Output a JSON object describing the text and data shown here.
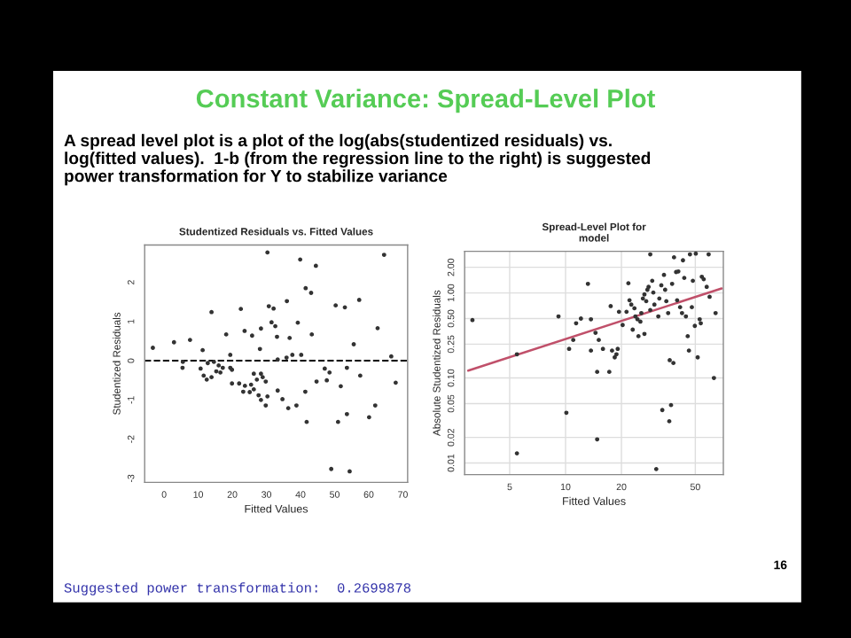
{
  "chart_data": [
    {
      "type": "other",
      "title": "Constant Variance: Spread-Level Plot",
      "subtitle": "A spread level plot is a plot of the log(abs(studentized residuals) vs.\nlog(fitted values).  1-b (from the regression line to the right) is suggested\npower transformation for Y to stabilize variance",
      "annotations": [
        "Suggested power transformation:  0.2699878",
        "16"
      ]
    },
    {
      "type": "scatter",
      "title": "Studentized Residuals vs. Fitted Values",
      "xlabel": "Fitted Values",
      "ylabel": "Studentized Residuals",
      "xlim": [
        -5.7,
        71.4
      ],
      "ylim": [
        -3.1,
        2.95
      ],
      "xticks": [
        0,
        10,
        20,
        30,
        40,
        50,
        60,
        70
      ],
      "yticks": [
        -3,
        -2,
        -1,
        0,
        1,
        2
      ],
      "marker": "circle",
      "grid": false,
      "ref_lines": [
        {
          "axis": "y",
          "value": 0,
          "color": "#000000",
          "line_style": "dashed"
        }
      ],
      "series": [
        {
          "color": "#333333",
          "x": [
            30.3,
            39.9,
            44.5,
            64.5,
            41.5,
            43.1,
            36,
            30.7,
            32.1,
            50.3,
            53,
            57.2,
            13.9,
            22.5,
            31.5,
            32.6,
            39.2,
            28.4,
            23.6,
            25.8,
            33.1,
            36.8,
            18.2,
            62.6,
            43.3,
            2.9,
            7.6,
            11.3,
            -3.3,
            55.6,
            28.1,
            19.4,
            37.6,
            40.2,
            35.9,
            33.3,
            66.6,
            5.5,
            5.4,
            10.7,
            12.8,
            14.6,
            16,
            17.2,
            11.6,
            13.9,
            15.3,
            16.5,
            19.4,
            19.9,
            12.5,
            19.9,
            22,
            23.7,
            23.2,
            25.5,
            26.3,
            27.2,
            28.4,
            28.9,
            26.3,
            25.1,
            27.7,
            28.4,
            29.8,
            30.3,
            29.8,
            33.3,
            34.7,
            36.4,
            38.8,
            41.4,
            44.7,
            47.1,
            48.5,
            47.7,
            51.8,
            53.6,
            57.5,
            67.9,
            41.8,
            51,
            53.6,
            60.1,
            61.9,
            49,
            54.4
          ],
          "values": [
            2.76,
            2.58,
            2.42,
            2.7,
            1.85,
            1.73,
            1.52,
            1.39,
            1.33,
            1.41,
            1.36,
            1.55,
            1.24,
            1.32,
            0.98,
            0.88,
            0.97,
            0.82,
            0.76,
            0.64,
            0.61,
            0.58,
            0.67,
            0.83,
            0.67,
            0.47,
            0.53,
            0.27,
            0.33,
            0.42,
            0.3,
            0.15,
            0.15,
            0.15,
            0.08,
            0.03,
            0.11,
            -0.03,
            -0.18,
            -0.2,
            -0.06,
            -0.03,
            -0.12,
            -0.18,
            -0.38,
            -0.42,
            -0.27,
            -0.3,
            -0.18,
            -0.23,
            -0.48,
            -0.58,
            -0.58,
            -0.64,
            -0.79,
            -0.61,
            -0.33,
            -0.48,
            -0.33,
            -0.42,
            -0.73,
            -0.8,
            -0.88,
            -1.0,
            -1.14,
            -0.91,
            -0.53,
            -0.76,
            -0.98,
            -1.21,
            -1.14,
            -0.79,
            -0.53,
            -0.2,
            -0.3,
            -0.5,
            -0.65,
            -0.18,
            -0.38,
            -0.56,
            -1.56,
            -1.56,
            -1.36,
            -1.44,
            -1.14,
            -2.76,
            -2.82
          ]
        }
      ]
    },
    {
      "type": "scatter",
      "title": "Spread-Level Plot for\nmodel",
      "xlabel": "Fitted Values",
      "ylabel": "Absolute Studentized Residuals",
      "log": "xy",
      "xlim": [
        2.86,
        70.8
      ],
      "ylim": [
        0.0073,
        3.08
      ],
      "xticks": [
        5,
        10,
        20,
        50
      ],
      "yticks": [
        {
          "value": 0.01,
          "label": "0.01"
        },
        {
          "value": 0.02,
          "label": "0.02"
        },
        {
          "value": 0.05,
          "label": "0.05"
        },
        {
          "value": 0.1,
          "label": "0.10"
        },
        {
          "value": 0.25,
          "label": "0.25"
        },
        {
          "value": 0.5,
          "label": "0.50"
        },
        {
          "value": 1,
          "label": "1.00"
        },
        {
          "value": 2,
          "label": "2.00"
        }
      ],
      "marker": "circle",
      "grid": true,
      "series": [
        {
          "color": "#333333",
          "x": [
            3.15,
            5.47,
            5.47,
            9.16,
            10.1,
            10.45,
            11,
            11.4,
            12.1,
            13.2,
            13.7,
            13.7,
            14.5,
            14.8,
            14.8,
            15.1,
            15.9,
            17.2,
            17.5,
            17.8,
            18.4,
            18.8,
            19.1,
            19.4,
            20.3,
            21.3,
            21.8,
            22.1,
            22.6,
            23,
            23.5,
            23.8,
            24.4,
            24.7,
            25.3,
            25.6,
            26.1,
            26.6,
            26.6,
            27.2,
            27.6,
            28,
            28.6,
            28.6,
            29.3,
            29.7,
            30.1,
            30.8,
            31.6,
            32,
            32.8,
            33.2,
            33.9,
            34.4,
            34.9,
            35.7,
            36.2,
            36.4,
            37,
            37.5,
            38.1,
            38.4,
            39.4,
            39.9,
            40.5,
            41.4,
            42.4,
            42.9,
            43.6,
            44.5,
            45.5,
            46.2,
            46.8,
            47.9,
            48.5,
            49.7,
            50.3,
            51.5,
            52.8,
            53.5,
            54.2,
            55.5,
            57.6,
            59,
            59.7,
            63,
            64.3
          ],
          "values": [
            0.48,
            0.19,
            0.013,
            0.53,
            0.039,
            0.22,
            0.28,
            0.44,
            0.5,
            1.28,
            0.49,
            0.21,
            0.34,
            0.118,
            0.019,
            0.28,
            0.22,
            0.118,
            0.7,
            0.21,
            0.175,
            0.19,
            0.22,
            0.6,
            0.42,
            0.6,
            1.3,
            0.82,
            0.73,
            0.37,
            0.66,
            0.53,
            0.49,
            0.31,
            0.46,
            0.58,
            0.86,
            0.96,
            0.33,
            0.8,
            1.09,
            1.18,
            0.63,
            2.84,
            1.39,
            1.01,
            0.73,
            0.0085,
            0.53,
            0.86,
            1.23,
            0.042,
            1.63,
            1.09,
            0.8,
            0.58,
            0.031,
            0.162,
            0.048,
            1.28,
            0.15,
            2.62,
            1.76,
            0.82,
            1.79,
            0.68,
            0.58,
            2.42,
            1.5,
            0.53,
            0.31,
            0.21,
            2.84,
            0.68,
            1.39,
            0.41,
            2.9,
            0.175,
            0.49,
            0.44,
            1.55,
            1.45,
            1.18,
            2.84,
            0.9,
            0.1,
            0.58
          ]
        },
        {
          "type": "line",
          "marker": "none",
          "color": "#c0506a",
          "x": [
            2.99,
            69.3
          ],
          "values": [
            0.122,
            1.13
          ]
        }
      ]
    }
  ]
}
